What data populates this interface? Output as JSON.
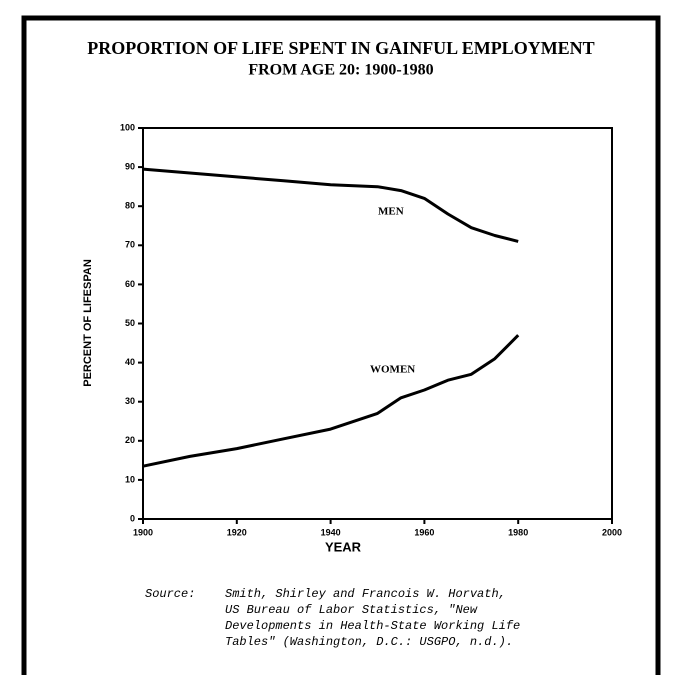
{
  "chart_data": {
    "type": "line",
    "title": [
      "PROPORTION OF LIFE SPENT IN GAINFUL EMPLOYMENT",
      "FROM AGE 20: 1900-1980"
    ],
    "x_label": "YEAR",
    "y_label": "PERCENT OF LIFESPAN",
    "x": [
      1900,
      1910,
      1920,
      1930,
      1940,
      1950,
      1955,
      1960,
      1965,
      1970,
      1975,
      1980
    ],
    "series": [
      {
        "name": "MEN",
        "color": "#000000",
        "values": [
          89.5,
          88.5,
          87.5,
          86.5,
          85.5,
          85,
          84,
          82,
          78,
          74.5,
          72.5,
          71
        ]
      },
      {
        "name": "WOMEN",
        "color": "#000000",
        "values": [
          13.5,
          16,
          18,
          20.5,
          23,
          27,
          31,
          33,
          35.5,
          37,
          41,
          47
        ]
      }
    ],
    "xlim": [
      1900,
      2000
    ],
    "xticks": [
      1900,
      1920,
      1940,
      1960,
      1980,
      2000
    ],
    "ylim": [
      0,
      100
    ],
    "yticks": [
      0,
      10,
      20,
      30,
      40,
      50,
      60,
      70,
      80,
      90,
      100
    ],
    "source_label": "Source:",
    "source": [
      "Smith, Shirley and Francois W. Horvath,",
      "US Bureau of Labor Statistics, \"New",
      "Developments in Health-State Working Life",
      "Tables\" (Washington, D.C.: USGPO, n.d.)."
    ]
  }
}
